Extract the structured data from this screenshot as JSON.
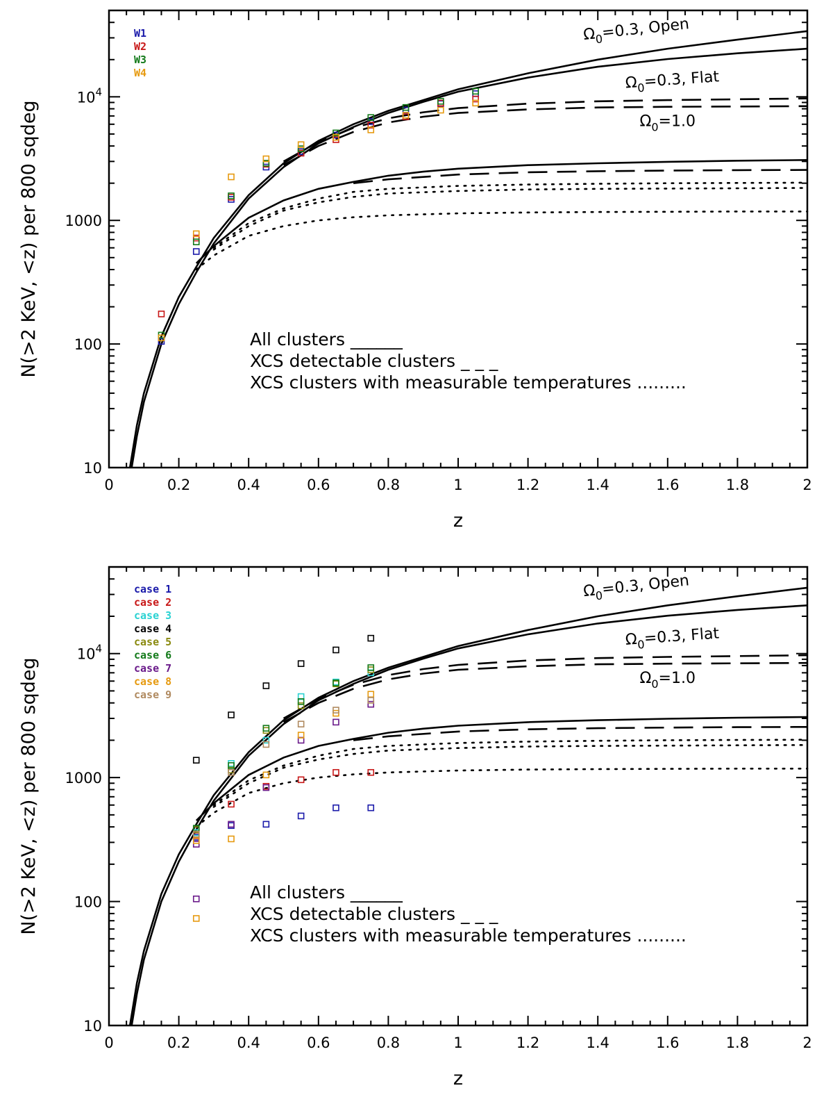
{
  "chart_data": [
    {
      "type": "scatter",
      "xlabel": "z",
      "ylabel": "N(>2 KeV, <z) per 800 sqdeg",
      "xlim": [
        0,
        2
      ],
      "ylim": [
        10,
        50000
      ],
      "yscale": "log",
      "xticks": [
        "0",
        "0.2",
        "0.4",
        "0.6",
        "0.8",
        "1",
        "1.2",
        "1.4",
        "1.6",
        "1.8",
        "2"
      ],
      "yticks": [
        "10",
        "100",
        "1000",
        "10^4"
      ],
      "ytick_values": [
        10,
        100,
        1000,
        10000
      ],
      "legend_position": "top-left",
      "key": [
        "All clusters ______",
        "XCS detectable clusters _ _ _",
        "XCS clusters with measurable temperatures ........."
      ],
      "curve_labels": [
        {
          "label": "Ω0=0.3, Open",
          "x": 1.36,
          "y": 29000
        },
        {
          "label": "Ω0=0.3, Flat",
          "x": 1.48,
          "y": 11800
        },
        {
          "label": "Ω0=1.0",
          "x": 1.52,
          "y": 5800
        }
      ],
      "curves": [
        {
          "model": "Ω0=0.3, Open",
          "style": "solid",
          "x": [
            0.06,
            0.08,
            0.1,
            0.15,
            0.2,
            0.25,
            0.3,
            0.4,
            0.5,
            0.6,
            0.7,
            0.8,
            0.9,
            1.0,
            1.2,
            1.4,
            1.6,
            1.8,
            2.0
          ],
          "y": [
            10,
            22,
            40,
            115,
            240,
            420,
            720,
            1600,
            2900,
            4400,
            6000,
            7700,
            9400,
            11500,
            15500,
            20000,
            24500,
            29000,
            34000
          ]
        },
        {
          "model": "Ω0=0.3, Flat",
          "style": "solid",
          "x": [
            0.065,
            0.08,
            0.1,
            0.15,
            0.2,
            0.25,
            0.3,
            0.4,
            0.5,
            0.6,
            0.7,
            0.8,
            0.9,
            1.0,
            1.2,
            1.4,
            1.6,
            1.8,
            2.0
          ],
          "y": [
            10,
            18,
            34,
            100,
            210,
            380,
            650,
            1500,
            2700,
            4200,
            5700,
            7400,
            9100,
            11000,
            14300,
            17500,
            20200,
            22500,
            24500
          ]
        },
        {
          "model": "Ω0=0.3, Open",
          "style": "dashed",
          "x": [
            0.5,
            0.6,
            0.7,
            0.8,
            0.9,
            1.0,
            1.2,
            1.4,
            1.6,
            1.8,
            2.0
          ],
          "y": [
            3000,
            4300,
            5600,
            6700,
            7500,
            8100,
            8800,
            9200,
            9400,
            9550,
            9700
          ]
        },
        {
          "model": "Ω0=0.3, Flat",
          "style": "dashed",
          "x": [
            0.5,
            0.6,
            0.7,
            0.8,
            0.9,
            1.0,
            1.2,
            1.4,
            1.6,
            1.8,
            2.0
          ],
          "y": [
            2800,
            4000,
            5200,
            6200,
            6900,
            7400,
            7900,
            8200,
            8300,
            8350,
            8400
          ]
        },
        {
          "model": "Ω0=1.0",
          "style": "solid",
          "x": [
            0.25,
            0.3,
            0.4,
            0.5,
            0.6,
            0.7,
            0.8,
            0.9,
            1.0,
            1.2,
            1.4,
            1.6,
            1.8,
            2.0
          ],
          "y": [
            450,
            620,
            1050,
            1450,
            1800,
            2050,
            2300,
            2480,
            2620,
            2800,
            2900,
            2980,
            3040,
            3080
          ]
        },
        {
          "model": "Ω0=1.0",
          "style": "dashed",
          "x": [
            0.7,
            0.8,
            1.0,
            1.2,
            1.4,
            1.6,
            1.8,
            2.0
          ],
          "y": [
            2000,
            2150,
            2350,
            2450,
            2500,
            2530,
            2550,
            2560
          ]
        },
        {
          "model": "Ω0=0.3, Open",
          "style": "dotted",
          "x": [
            0.3,
            0.4,
            0.5,
            0.6,
            0.7,
            0.8,
            1.0,
            1.2,
            1.4,
            1.6,
            1.8,
            2.0
          ],
          "y": [
            600,
            950,
            1250,
            1500,
            1700,
            1800,
            1900,
            1950,
            1980,
            2000,
            2010,
            2020
          ]
        },
        {
          "model": "Ω0=0.3, Flat",
          "style": "dotted",
          "x": [
            0.3,
            0.4,
            0.5,
            0.6,
            0.7,
            0.8,
            1.0,
            1.2,
            1.4,
            1.6,
            1.8,
            2.0
          ],
          "y": [
            580,
            900,
            1200,
            1400,
            1550,
            1650,
            1730,
            1780,
            1800,
            1810,
            1820,
            1830
          ]
        },
        {
          "model": "Ω0=1.0",
          "style": "dotted",
          "x": [
            0.25,
            0.3,
            0.4,
            0.5,
            0.6,
            0.7,
            0.8,
            1.0,
            1.2,
            1.4,
            1.6,
            1.8,
            2.0
          ],
          "y": [
            400,
            520,
            750,
            900,
            1000,
            1060,
            1100,
            1140,
            1160,
            1170,
            1175,
            1180,
            1180
          ]
        }
      ],
      "legend": [
        {
          "label": "W1",
          "color": "#1a1aaa"
        },
        {
          "label": "W2",
          "color": "#c81818"
        },
        {
          "label": "W3",
          "color": "#137a1a"
        },
        {
          "label": "W4",
          "color": "#e69a10"
        }
      ],
      "series": [
        {
          "name": "W1",
          "color": "#1a1aaa",
          "x": [
            0.15,
            0.25,
            0.35,
            0.45,
            0.55,
            0.65,
            0.75,
            0.85,
            0.95,
            1.05
          ],
          "y": [
            105,
            560,
            1480,
            2700,
            3600,
            4900,
            6300,
            7800,
            8800,
            10600
          ]
        },
        {
          "name": "W2",
          "color": "#c81818",
          "x": [
            0.15,
            0.25,
            0.35,
            0.45,
            0.55,
            0.65,
            0.75,
            0.85,
            0.95,
            1.05
          ],
          "y": [
            175,
            720,
            1540,
            2850,
            3500,
            4500,
            5900,
            6900,
            8900,
            9600
          ]
        },
        {
          "name": "W3",
          "color": "#137a1a",
          "x": [
            0.15,
            0.25,
            0.35,
            0.45,
            0.55,
            0.65,
            0.75,
            0.85,
            0.95,
            1.05
          ],
          "y": [
            118,
            670,
            1580,
            2900,
            3800,
            5100,
            6800,
            8200,
            9200,
            11100
          ]
        },
        {
          "name": "W4",
          "color": "#e69a10",
          "x": [
            0.15,
            0.25,
            0.35,
            0.45,
            0.55,
            0.65,
            0.75,
            0.85,
            0.95,
            1.05
          ],
          "y": [
            112,
            780,
            2250,
            3150,
            4100,
            4700,
            5400,
            7100,
            7800,
            8900
          ]
        }
      ]
    },
    {
      "type": "scatter",
      "xlabel": "z",
      "ylabel": "N(>2 KeV, <z) per 800 sqdeg",
      "xlim": [
        0,
        2
      ],
      "ylim": [
        10,
        50000
      ],
      "yscale": "log",
      "xticks": [
        "0",
        "0.2",
        "0.4",
        "0.6",
        "0.8",
        "1",
        "1.2",
        "1.4",
        "1.6",
        "1.8",
        "2"
      ],
      "yticks": [
        "10",
        "100",
        "1000",
        "10^4"
      ],
      "ytick_values": [
        10,
        100,
        1000,
        10000
      ],
      "legend_position": "top-left",
      "key": [
        "All clusters ______",
        "XCS detectable clusters _ _ _",
        "XCS clusters with measurable temperatures ........."
      ],
      "curve_labels": [
        {
          "label": "Ω0=0.3, Open",
          "x": 1.36,
          "y": 29000
        },
        {
          "label": "Ω0=0.3, Flat",
          "x": 1.48,
          "y": 11800
        },
        {
          "label": "Ω0=1.0",
          "x": 1.52,
          "y": 5800
        }
      ],
      "curves": [
        {
          "model": "Ω0=0.3, Open",
          "style": "solid",
          "x": [
            0.06,
            0.08,
            0.1,
            0.15,
            0.2,
            0.25,
            0.3,
            0.4,
            0.5,
            0.6,
            0.7,
            0.8,
            0.9,
            1.0,
            1.2,
            1.4,
            1.6,
            1.8,
            2.0
          ],
          "y": [
            10,
            22,
            40,
            115,
            240,
            420,
            720,
            1600,
            2900,
            4400,
            6000,
            7700,
            9400,
            11500,
            15500,
            20000,
            24500,
            29000,
            34000
          ]
        },
        {
          "model": "Ω0=0.3, Flat",
          "style": "solid",
          "x": [
            0.065,
            0.08,
            0.1,
            0.15,
            0.2,
            0.25,
            0.3,
            0.4,
            0.5,
            0.6,
            0.7,
            0.8,
            0.9,
            1.0,
            1.2,
            1.4,
            1.6,
            1.8,
            2.0
          ],
          "y": [
            10,
            18,
            34,
            100,
            210,
            380,
            650,
            1500,
            2700,
            4200,
            5700,
            7400,
            9100,
            11000,
            14300,
            17500,
            20200,
            22500,
            24500
          ]
        },
        {
          "model": "Ω0=0.3, Open",
          "style": "dashed",
          "x": [
            0.5,
            0.6,
            0.7,
            0.8,
            0.9,
            1.0,
            1.2,
            1.4,
            1.6,
            1.8,
            2.0
          ],
          "y": [
            3000,
            4300,
            5600,
            6700,
            7500,
            8100,
            8800,
            9200,
            9400,
            9550,
            9700
          ]
        },
        {
          "model": "Ω0=0.3, Flat",
          "style": "dashed",
          "x": [
            0.5,
            0.6,
            0.7,
            0.8,
            0.9,
            1.0,
            1.2,
            1.4,
            1.6,
            1.8,
            2.0
          ],
          "y": [
            2800,
            4000,
            5200,
            6200,
            6900,
            7400,
            7900,
            8200,
            8300,
            8350,
            8400
          ]
        },
        {
          "model": "Ω0=1.0",
          "style": "solid",
          "x": [
            0.25,
            0.3,
            0.4,
            0.5,
            0.6,
            0.7,
            0.8,
            0.9,
            1.0,
            1.2,
            1.4,
            1.6,
            1.8,
            2.0
          ],
          "y": [
            450,
            620,
            1050,
            1450,
            1800,
            2050,
            2300,
            2480,
            2620,
            2800,
            2900,
            2980,
            3040,
            3080
          ]
        },
        {
          "model": "Ω0=1.0",
          "style": "dashed",
          "x": [
            0.7,
            0.8,
            1.0,
            1.2,
            1.4,
            1.6,
            1.8,
            2.0
          ],
          "y": [
            2000,
            2150,
            2350,
            2450,
            2500,
            2530,
            2550,
            2560
          ]
        },
        {
          "model": "Ω0=0.3, Open",
          "style": "dotted",
          "x": [
            0.3,
            0.4,
            0.5,
            0.6,
            0.7,
            0.8,
            1.0,
            1.2,
            1.4,
            1.6,
            1.8,
            2.0
          ],
          "y": [
            600,
            950,
            1250,
            1500,
            1700,
            1800,
            1900,
            1950,
            1980,
            2000,
            2010,
            2020
          ]
        },
        {
          "model": "Ω0=0.3, Flat",
          "style": "dotted",
          "x": [
            0.3,
            0.4,
            0.5,
            0.6,
            0.7,
            0.8,
            1.0,
            1.2,
            1.4,
            1.6,
            1.8,
            2.0
          ],
          "y": [
            580,
            900,
            1200,
            1400,
            1550,
            1650,
            1730,
            1780,
            1800,
            1810,
            1820,
            1830
          ]
        },
        {
          "model": "Ω0=1.0",
          "style": "dotted",
          "x": [
            0.25,
            0.3,
            0.4,
            0.5,
            0.6,
            0.7,
            0.8,
            1.0,
            1.2,
            1.4,
            1.6,
            1.8,
            2.0
          ],
          "y": [
            400,
            520,
            750,
            900,
            1000,
            1060,
            1100,
            1140,
            1160,
            1170,
            1175,
            1180,
            1180
          ]
        }
      ],
      "legend": [
        {
          "label": "case 1",
          "color": "#1a1aaa"
        },
        {
          "label": "case 2",
          "color": "#c81818"
        },
        {
          "label": "case 3",
          "color": "#2ad2d2"
        },
        {
          "label": "case 4",
          "color": "#000000"
        },
        {
          "label": "case 5",
          "color": "#8a8a10"
        },
        {
          "label": "case 6",
          "color": "#137a1a"
        },
        {
          "label": "case 7",
          "color": "#6a1a8a"
        },
        {
          "label": "case 8",
          "color": "#e69a10"
        },
        {
          "label": "case 9",
          "color": "#b08a60"
        }
      ],
      "series": [
        {
          "name": "case 1",
          "color": "#1a1aaa",
          "x": [
            0.25,
            0.35,
            0.45,
            0.55,
            0.65,
            0.75
          ],
          "y": [
            330,
            410,
            420,
            490,
            570,
            570
          ]
        },
        {
          "name": "case 2",
          "color": "#c81818",
          "x": [
            0.25,
            0.35,
            0.45,
            0.55,
            0.65,
            0.75
          ],
          "y": [
            340,
            610,
            850,
            960,
            1100,
            1100
          ]
        },
        {
          "name": "case 3",
          "color": "#2ad2d2",
          "x": [
            0.25,
            0.35,
            0.45,
            0.55,
            0.65,
            0.75
          ],
          "y": [
            360,
            1300,
            2000,
            4500,
            5900,
            7000
          ]
        },
        {
          "name": "case 4",
          "color": "#000000",
          "x": [
            0.25,
            0.35,
            0.45,
            0.55,
            0.65,
            0.75
          ],
          "y": [
            1380,
            3200,
            5500,
            8300,
            10700,
            13300
          ]
        },
        {
          "name": "case 5",
          "color": "#8a8a10",
          "x": [
            0.25,
            0.35,
            0.45,
            0.55,
            0.65,
            0.75
          ],
          "y": [
            380,
            1150,
            2400,
            3800,
            5700,
            7400
          ]
        },
        {
          "name": "case 6",
          "color": "#137a1a",
          "x": [
            0.25,
            0.35,
            0.45,
            0.55,
            0.65,
            0.75
          ],
          "y": [
            390,
            1250,
            2500,
            4100,
            5800,
            7700
          ]
        },
        {
          "name": "case 7",
          "color": "#6a1a8a",
          "x": [
            0.25,
            0.25,
            0.35,
            0.45,
            0.55,
            0.65,
            0.75
          ],
          "y": [
            105,
            290,
            420,
            830,
            2000,
            2800,
            3900
          ]
        },
        {
          "name": "case 8",
          "color": "#e69a10",
          "x": [
            0.25,
            0.25,
            0.35,
            0.45,
            0.55,
            0.65,
            0.75
          ],
          "y": [
            73,
            310,
            320,
            1050,
            2200,
            3300,
            4700
          ]
        },
        {
          "name": "case 9",
          "color": "#b08a60",
          "x": [
            0.25,
            0.35,
            0.45,
            0.55,
            0.65,
            0.75
          ],
          "y": [
            350,
            1100,
            1850,
            2700,
            3500,
            4200
          ]
        }
      ]
    }
  ]
}
